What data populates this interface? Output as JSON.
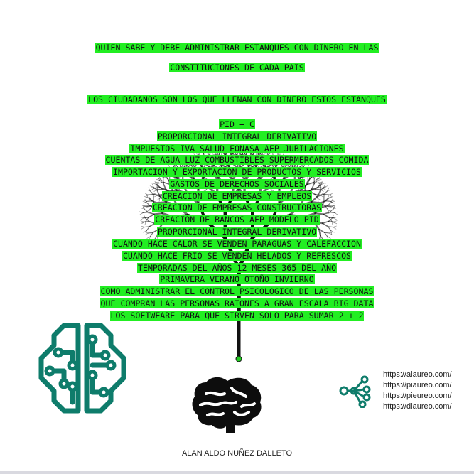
{
  "lines": [
    "QUIEN SABE Y DEBE ADMINISTRAR ESTANQUES CON DINERO EN LAS",
    "CONSTITUCIONES DE CADA PAIS",
    "LOS CIUDADANOS SON LOS QUE LLENAN CON DINERO ESTOS ESTANQUES",
    "PID + C",
    "PROPORCIONAL INTEGRAL DERIVATIVO",
    "IMPUESTOS IVA SALUD FONASA AFP JUBILACIONES",
    "CUENTAS DE AGUA LUZ COMBUSTIBLES SUPERMERCADOS COMIDA",
    "IMPORTACION Y EXPORTACION DE PRODUCTOS Y SERVICIOS",
    "GASTOS DE DERECHOS SOCIALES",
    "CREACION DE EMPRESAS Y EMPLEOS",
    "CREACION DE EMPRESAS CONSTRUCTORAS",
    "CREACION DE BANCOS AFP MODELO PID",
    "PROPORCIONAL INTEGRAL DERIVATIVO",
    "CUANDO HACE CALOR SE VENDEN PARAGUAS Y CALEFACCION",
    "CUANDO HACE FRIO SE VENDEN HELADOS Y REFRESCOS",
    "TEMPORADAS DEL AÑOS 12 MESES 365 DEL AÑO",
    "PRIMAVERA VERANO OTOÑO INVIERNO",
    "COMO ADMINISTRAR EL CONTROL PSICOLOGICO DE LAS PERSONAS",
    "QUE COMPRAN LAS PERSONAS RATONES A GRAN ESCALA BIG DATA",
    "LOS SOFTWEARE PARA QUE SIRVEN SOLO PARA SUMAR 2 + 2"
  ],
  "author": "ALAN ALDO NUÑEZ DALLETO",
  "links": [
    "https://aiaureo.com/",
    "https://piaureo.com/",
    "https://pieureo.com/",
    "https://diaureo.com/"
  ],
  "colors": {
    "highlight": "#22ee22",
    "teal": "#0e7c6b",
    "tree": "#111111",
    "node": "#22cc22"
  },
  "icons": [
    "ai-circuit-brain-icon",
    "brain-icon",
    "network-share-icon"
  ]
}
